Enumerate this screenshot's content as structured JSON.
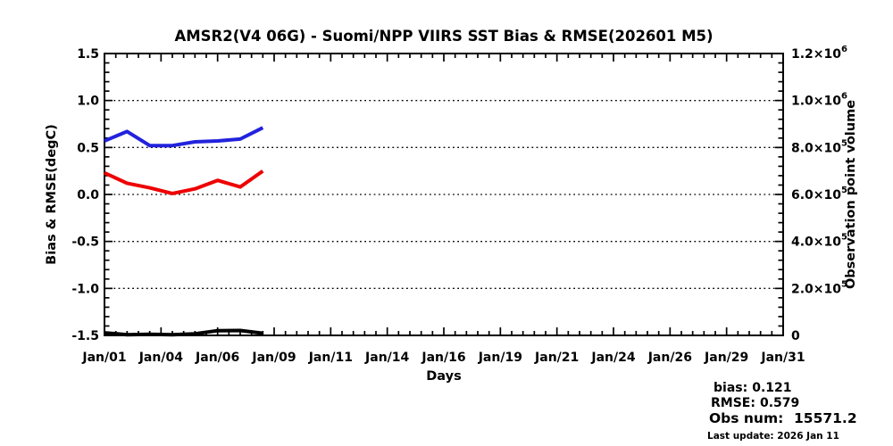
{
  "title": "AMSR2(V4 06G) - Suomi/NPP VIIRS SST Bias & RMSE(202601 M5)",
  "colors": {
    "bias_line": "#ee0000",
    "rmse_line": "#2222dd",
    "obs_line": "#000000",
    "frame": "#000000",
    "background": "#ffffff"
  },
  "chart_data": {
    "type": "line",
    "title": "AMSR2(V4 06G) - Suomi/NPP VIIRS SST Bias & RMSE(202601 M5)",
    "xlabel": "Days",
    "ylabel_left": "Bias & RMSE(degC)",
    "ylabel_right": "Observation point volume",
    "xlim": [
      1,
      31
    ],
    "ylim_left": [
      -1.5,
      1.5
    ],
    "ylim_right": [
      0,
      1200000
    ],
    "x_tick_labels": [
      "Jan/01",
      "Jan/04",
      "Jan/06",
      "Jan/09",
      "Jan/11",
      "Jan/14",
      "Jan/16",
      "Jan/19",
      "Jan/21",
      "Jan/24",
      "Jan/26",
      "Jan/29",
      "Jan/31"
    ],
    "y_left_tick_labels": [
      "1.5",
      "1.0",
      "0.5",
      "0.0",
      "-0.5",
      "-1.0",
      "-1.5"
    ],
    "y_right_tick_labels": [
      "1.2×10^6",
      "1.0×10^6",
      "8.0×10^5",
      "6.0×10^5",
      "4.0×10^5",
      "2.0×10^5",
      "0"
    ],
    "grid": "horizontal dotted lines at left-axis major ticks, no vertical grid",
    "legend_position": "bottom-right text block outside plot",
    "x": [
      1,
      2,
      3,
      4,
      5,
      6,
      7,
      8
    ],
    "series": [
      {
        "name": "RMSE",
        "axis": "left",
        "color": "#2222dd",
        "values": [
          0.57,
          0.67,
          0.52,
          0.52,
          0.56,
          0.57,
          0.59,
          0.71
        ]
      },
      {
        "name": "bias",
        "axis": "left",
        "color": "#ee0000",
        "values": [
          0.23,
          0.12,
          0.07,
          0.01,
          0.06,
          0.15,
          0.08,
          0.25
        ]
      },
      {
        "name": "observation-point-volume",
        "axis": "right",
        "color": "#000000",
        "values": [
          11000,
          3000,
          5000,
          3000,
          7000,
          20000,
          21000,
          9000
        ]
      }
    ]
  },
  "summary": {
    "bias": {
      "label": "bias:",
      "value": "0.121",
      "color": "#ee0000"
    },
    "rmse": {
      "label": "RMSE:",
      "value": "0.579",
      "color": "#2222dd"
    },
    "obs": {
      "label": "Obs num:",
      "value": "15571.2",
      "color": "#000000"
    },
    "last_update": "Last update: 2026 Jan 11"
  }
}
